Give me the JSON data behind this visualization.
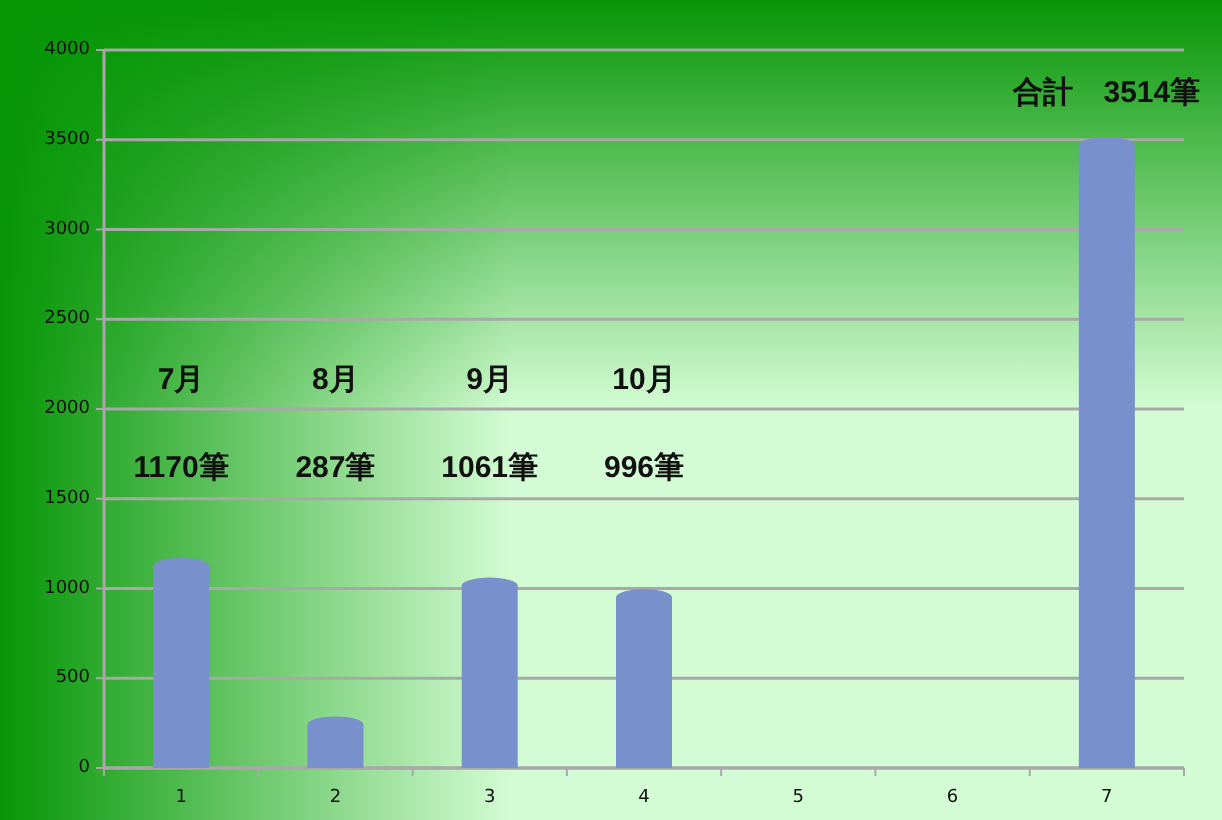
{
  "chart_data": {
    "type": "bar",
    "categories": [
      "1",
      "2",
      "3",
      "4",
      "5",
      "6",
      "7"
    ],
    "values": [
      1170,
      287,
      1061,
      996,
      null,
      null,
      3514
    ],
    "color": "#7890cc",
    "ylim": [
      0,
      4000
    ],
    "yticks": [
      0,
      500,
      1000,
      1500,
      2000,
      2500,
      3000,
      3500,
      4000
    ],
    "grid": "y",
    "annotations": [
      "7月",
      "1170筆",
      "8月",
      "287筆",
      "9月",
      "1061筆",
      "10月",
      "996筆",
      "合計　3514筆"
    ]
  }
}
